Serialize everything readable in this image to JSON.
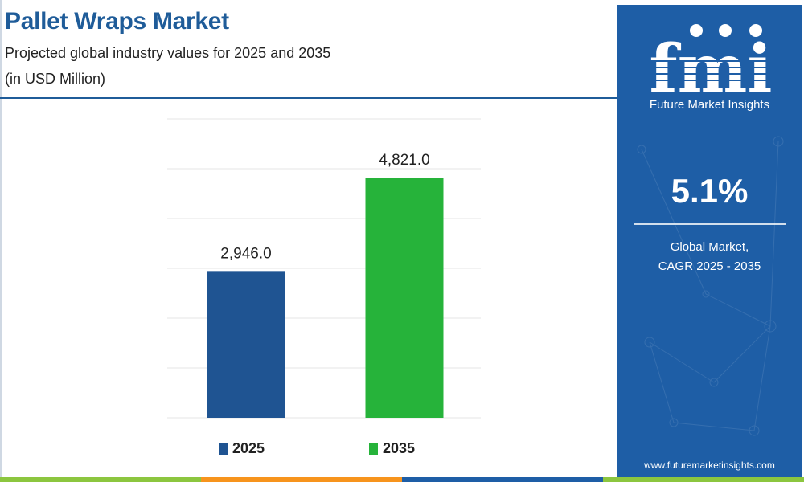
{
  "header": {
    "title": "Pallet Wraps Market",
    "subtitle": "Projected global industry values for 2025 and 2035",
    "unit": "(in USD Million)"
  },
  "chart_data": {
    "type": "bar",
    "categories": [
      "2025",
      "2035"
    ],
    "values": [
      2946.0,
      4821.0
    ],
    "value_labels": [
      "2,946.0",
      "4,821.0"
    ],
    "colors": [
      "#1f5492",
      "#26b33a"
    ],
    "ylim": [
      0,
      6000
    ],
    "grid": true,
    "legend": {
      "placement": "bottom",
      "items": [
        {
          "label": "2025",
          "color": "#1f5492"
        },
        {
          "label": "2035",
          "color": "#26b33a"
        }
      ]
    }
  },
  "side_panel": {
    "logo_text": "fmi",
    "logo_caption": "Future Market Insights",
    "cagr_value": "5.1%",
    "cagr_label_line1": "Global Market,",
    "cagr_label_line2": "CAGR 2025 - 2035",
    "website": "www.futuremarketinsights.com",
    "background": "#1e5ea6"
  },
  "footer_colors": [
    "#8cc63f",
    "#f7941d",
    "#1e5ea6",
    "#8cc63f"
  ]
}
